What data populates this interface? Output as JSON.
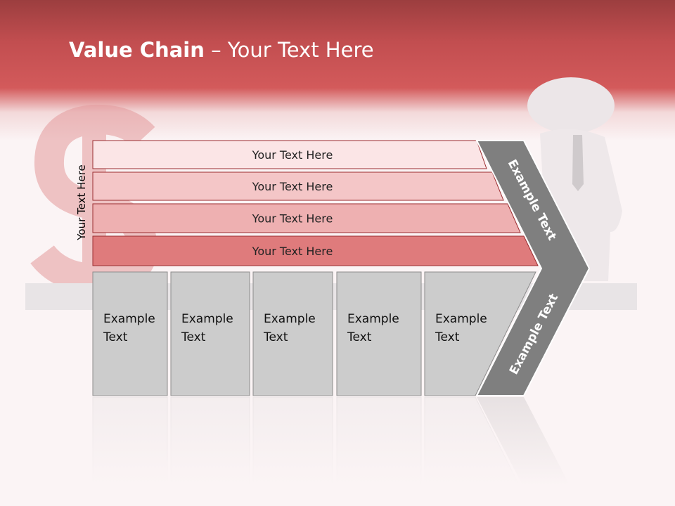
{
  "title": {
    "bold": "Value Chain",
    "rest": " – Your Text Here"
  },
  "side_label": "Your Text Here",
  "bars": [
    {
      "label": "Your Text Here",
      "color": "#fbe5e6"
    },
    {
      "label": "Your Text Here",
      "color": "#f4c6c7"
    },
    {
      "label": "Your Text Here",
      "color": "#eeb0b1"
    },
    {
      "label": "Your Text Here",
      "color": "#df7b7c"
    }
  ],
  "boxes": [
    {
      "line1": "Example",
      "line2": "Text"
    },
    {
      "line1": "Example",
      "line2": "Text"
    },
    {
      "line1": "Example",
      "line2": "Text"
    },
    {
      "line1": "Example",
      "line2": "Text"
    },
    {
      "line1": "Example",
      "line2": "Text"
    }
  ],
  "chevron": {
    "top_label": "Example Text",
    "bottom_label": "Example Text",
    "color": "#7f7f7f"
  },
  "colors": {
    "header": "#c24e50",
    "box": "#cccccc",
    "bar_border": "#9b2d30"
  },
  "background_icons": [
    "dollar-sign-icon",
    "businessman-figure-icon"
  ]
}
